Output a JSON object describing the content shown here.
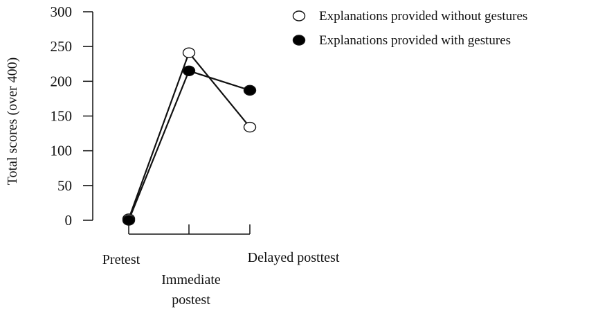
{
  "chart_data": {
    "type": "line",
    "title": "",
    "xlabel": "",
    "ylabel": "Total scores (over 400)",
    "ylim": [
      0,
      300
    ],
    "yticks": [
      0,
      50,
      100,
      150,
      200,
      250,
      300
    ],
    "categories": [
      [
        "Pretest"
      ],
      [
        "Immediate",
        "postest"
      ],
      [
        "Delayed posttest"
      ]
    ],
    "grid": false,
    "legend_position": "top-right",
    "series": [
      {
        "name": "Explanations provided without gestures",
        "marker": "open-circle",
        "values": [
          2,
          241,
          134
        ]
      },
      {
        "name": "Explanations provided with gestures",
        "marker": "filled-circle",
        "values": [
          0,
          215,
          187
        ]
      }
    ],
    "colors": {
      "line": "#111111",
      "marker_fill_filled": "#000000",
      "marker_fill_open": "#ffffff"
    }
  }
}
